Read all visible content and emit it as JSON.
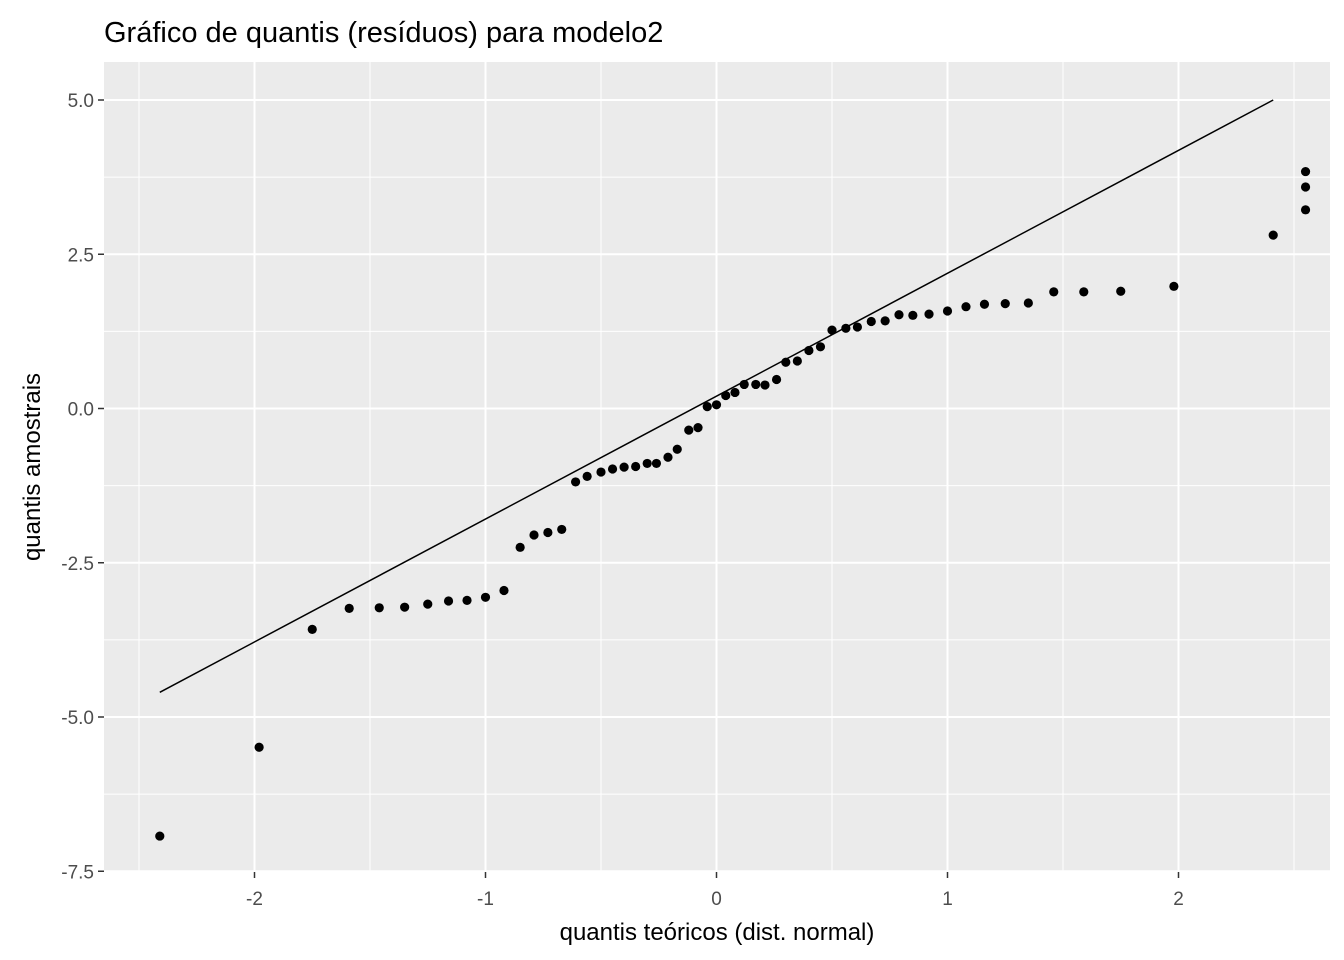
{
  "chart_data": {
    "type": "scatter",
    "title": "Gráfico de quantis (resíduos) para modelo2",
    "xlabel": "quantis teóricos (dist. normal)",
    "ylabel": "quantis amostrais",
    "xlim": [
      -2.55,
      2.55
    ],
    "ylim": [
      -7.55,
      5.55
    ],
    "x_ticks": [
      -2,
      -1,
      0,
      1,
      2
    ],
    "x_tick_labels": [
      "-2",
      "-1",
      "0",
      "1",
      "2"
    ],
    "y_ticks": [
      -7.5,
      -5.0,
      -2.5,
      0.0,
      2.5,
      5.0
    ],
    "y_tick_labels": [
      "-7.5",
      "-5.0",
      "-2.5",
      "0.0",
      "2.5",
      "5.0"
    ],
    "grid": true,
    "reference_line": {
      "x": [
        -2.41,
        2.41
      ],
      "y": [
        -4.6,
        5.0
      ]
    },
    "points": [
      [
        -2.41,
        -6.93
      ],
      [
        -1.98,
        -5.49
      ],
      [
        -1.75,
        -3.58
      ],
      [
        -1.59,
        -3.24
      ],
      [
        -1.46,
        -3.23
      ],
      [
        -1.35,
        -3.22
      ],
      [
        -1.25,
        -3.17
      ],
      [
        -1.16,
        -3.12
      ],
      [
        -1.08,
        -3.11
      ],
      [
        -1.0,
        -3.06
      ],
      [
        -0.92,
        -2.95
      ],
      [
        -0.85,
        -2.25
      ],
      [
        -0.79,
        -2.05
      ],
      [
        -0.73,
        -2.01
      ],
      [
        -0.67,
        -1.96
      ],
      [
        -0.61,
        -1.19
      ],
      [
        -0.56,
        -1.1
      ],
      [
        -0.5,
        -1.03
      ],
      [
        -0.45,
        -0.98
      ],
      [
        -0.4,
        -0.95
      ],
      [
        -0.35,
        -0.94
      ],
      [
        -0.3,
        -0.89
      ],
      [
        -0.26,
        -0.89
      ],
      [
        -0.21,
        -0.79
      ],
      [
        -0.17,
        -0.66
      ],
      [
        -0.12,
        -0.35
      ],
      [
        -0.08,
        -0.31
      ],
      [
        -0.04,
        0.03
      ],
      [
        0.0,
        0.06
      ],
      [
        0.04,
        0.21
      ],
      [
        0.08,
        0.26
      ],
      [
        0.12,
        0.39
      ],
      [
        0.17,
        0.39
      ],
      [
        0.21,
        0.38
      ],
      [
        0.26,
        0.47
      ],
      [
        0.3,
        0.75
      ],
      [
        0.35,
        0.77
      ],
      [
        0.4,
        0.94
      ],
      [
        0.45,
        1.0
      ],
      [
        0.5,
        1.27
      ],
      [
        0.56,
        1.3
      ],
      [
        0.61,
        1.32
      ],
      [
        0.67,
        1.41
      ],
      [
        0.73,
        1.42
      ],
      [
        0.79,
        1.52
      ],
      [
        0.85,
        1.51
      ],
      [
        0.92,
        1.53
      ],
      [
        1.0,
        1.58
      ],
      [
        1.08,
        1.65
      ],
      [
        1.16,
        1.69
      ],
      [
        1.25,
        1.7
      ],
      [
        1.35,
        1.71
      ],
      [
        1.46,
        1.89
      ],
      [
        1.59,
        1.89
      ],
      [
        1.75,
        1.9
      ],
      [
        1.98,
        1.98
      ],
      [
        2.41,
        2.81
      ],
      [
        2.55,
        3.22
      ],
      [
        2.55,
        3.59
      ],
      [
        2.55,
        3.84
      ]
    ]
  }
}
